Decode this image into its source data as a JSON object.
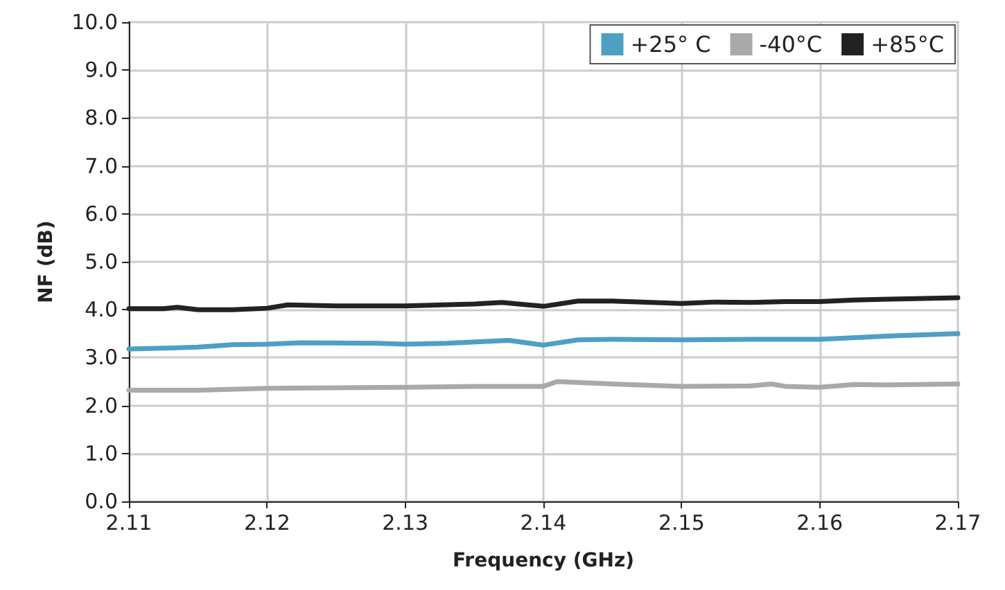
{
  "chart_data": {
    "type": "line",
    "xlabel": "Frequency (GHz)",
    "ylabel": "NF (dB)",
    "xlim": [
      2.11,
      2.17
    ],
    "xticks": [
      2.11,
      2.12,
      2.13,
      2.14,
      2.15,
      2.16,
      2.17
    ],
    "ylim": [
      0,
      10
    ],
    "yticks": [
      {
        "value": 0,
        "label": "0.0"
      },
      {
        "value": 1,
        "label": "1.0"
      },
      {
        "value": 2,
        "label": "2.0"
      },
      {
        "value": 3,
        "label": "3.0"
      },
      {
        "value": 4,
        "label": "4.0"
      },
      {
        "value": 5,
        "label": "5.0"
      },
      {
        "value": 6,
        "label": "6.0"
      },
      {
        "value": 7,
        "label": "7.0"
      },
      {
        "value": 8,
        "label": "8.0"
      },
      {
        "value": 9,
        "label": "9.0"
      },
      {
        "value": 10,
        "label": "10.0"
      }
    ],
    "grid": true,
    "legend": "top right",
    "marker": "none",
    "line_style": "solid",
    "series": [
      {
        "name": "+25° C",
        "color": "#4e9fc4",
        "x": [
          2.11,
          2.113,
          2.115,
          2.1175,
          2.12,
          2.1225,
          2.128,
          2.13,
          2.133,
          2.1375,
          2.14,
          2.1425,
          2.145,
          2.15,
          2.155,
          2.16,
          2.165,
          2.17
        ],
        "values": [
          3.18,
          3.2,
          3.22,
          3.27,
          3.28,
          3.31,
          3.3,
          3.28,
          3.3,
          3.36,
          3.26,
          3.37,
          3.38,
          3.37,
          3.38,
          3.38,
          3.45,
          3.5
        ]
      },
      {
        "name": "-40°C",
        "color": "#a9a9ab",
        "x": [
          2.11,
          2.115,
          2.12,
          2.125,
          2.13,
          2.135,
          2.14,
          2.141,
          2.145,
          2.15,
          2.155,
          2.1565,
          2.1575,
          2.16,
          2.1625,
          2.165,
          2.17
        ],
        "values": [
          2.32,
          2.32,
          2.36,
          2.37,
          2.38,
          2.4,
          2.4,
          2.5,
          2.45,
          2.4,
          2.41,
          2.45,
          2.4,
          2.38,
          2.44,
          2.43,
          2.45
        ]
      },
      {
        "name": "+85°C",
        "color": "#222222",
        "x": [
          2.11,
          2.1125,
          2.1135,
          2.115,
          2.1175,
          2.12,
          2.1215,
          2.125,
          2.13,
          2.135,
          2.137,
          2.14,
          2.1425,
          2.145,
          2.15,
          2.1525,
          2.155,
          2.1575,
          2.16,
          2.1625,
          2.165,
          2.17
        ],
        "values": [
          4.02,
          4.02,
          4.05,
          4.0,
          4.0,
          4.03,
          4.1,
          4.08,
          4.08,
          4.12,
          4.15,
          4.07,
          4.18,
          4.18,
          4.13,
          4.16,
          4.15,
          4.17,
          4.17,
          4.2,
          4.22,
          4.25
        ]
      }
    ]
  }
}
